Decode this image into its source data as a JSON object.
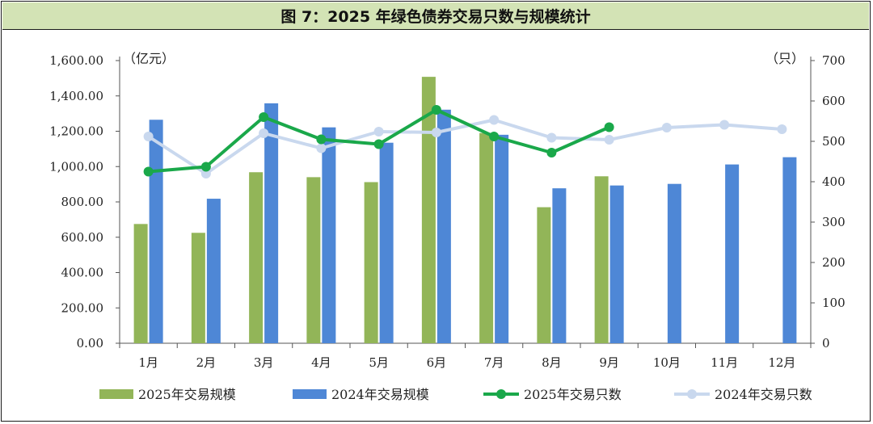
{
  "title": "图 7：2025 年绿色债券交易只数与规模统计",
  "chart_data": {
    "type": "bar+line",
    "title": "图 7：2025 年绿色债券交易只数与规模统计",
    "categories": [
      "1月",
      "2月",
      "3月",
      "4月",
      "5月",
      "6月",
      "7月",
      "8月",
      "9月",
      "10月",
      "11月",
      "12月"
    ],
    "y_left": {
      "unit": "（亿元）",
      "range": [
        0,
        1600
      ],
      "ticks": [
        "0.00",
        "200.00",
        "400.00",
        "600.00",
        "800.00",
        "1,000.00",
        "1,200.00",
        "1,400.00",
        "1,600.00"
      ]
    },
    "y_right": {
      "unit": "（只）",
      "range": [
        0,
        700
      ],
      "ticks": [
        "0",
        "100",
        "200",
        "300",
        "400",
        "500",
        "600",
        "700"
      ]
    },
    "series": [
      {
        "name": "2025年交易规模",
        "type": "bar",
        "axis": "left",
        "color": "#92b558",
        "values": [
          675,
          625,
          968,
          940,
          912,
          1508,
          1190,
          770,
          945,
          null,
          null,
          null
        ]
      },
      {
        "name": "2024年交易规模",
        "type": "bar",
        "axis": "left",
        "color": "#4e87d6",
        "values": [
          1265,
          818,
          1358,
          1222,
          1135,
          1322,
          1180,
          877,
          893,
          902,
          1012,
          1053
        ]
      },
      {
        "name": "2025年交易只数",
        "type": "line",
        "axis": "right",
        "color": "#1aa84a",
        "values": [
          425,
          437,
          560,
          505,
          493,
          578,
          512,
          472,
          535,
          null,
          null,
          null
        ]
      },
      {
        "name": "2024年交易只数",
        "type": "line",
        "axis": "right",
        "color": "#c9d8ee",
        "values": [
          512,
          420,
          520,
          483,
          524,
          522,
          553,
          509,
          504,
          534,
          541,
          530
        ]
      }
    ],
    "legend_position": "bottom"
  }
}
